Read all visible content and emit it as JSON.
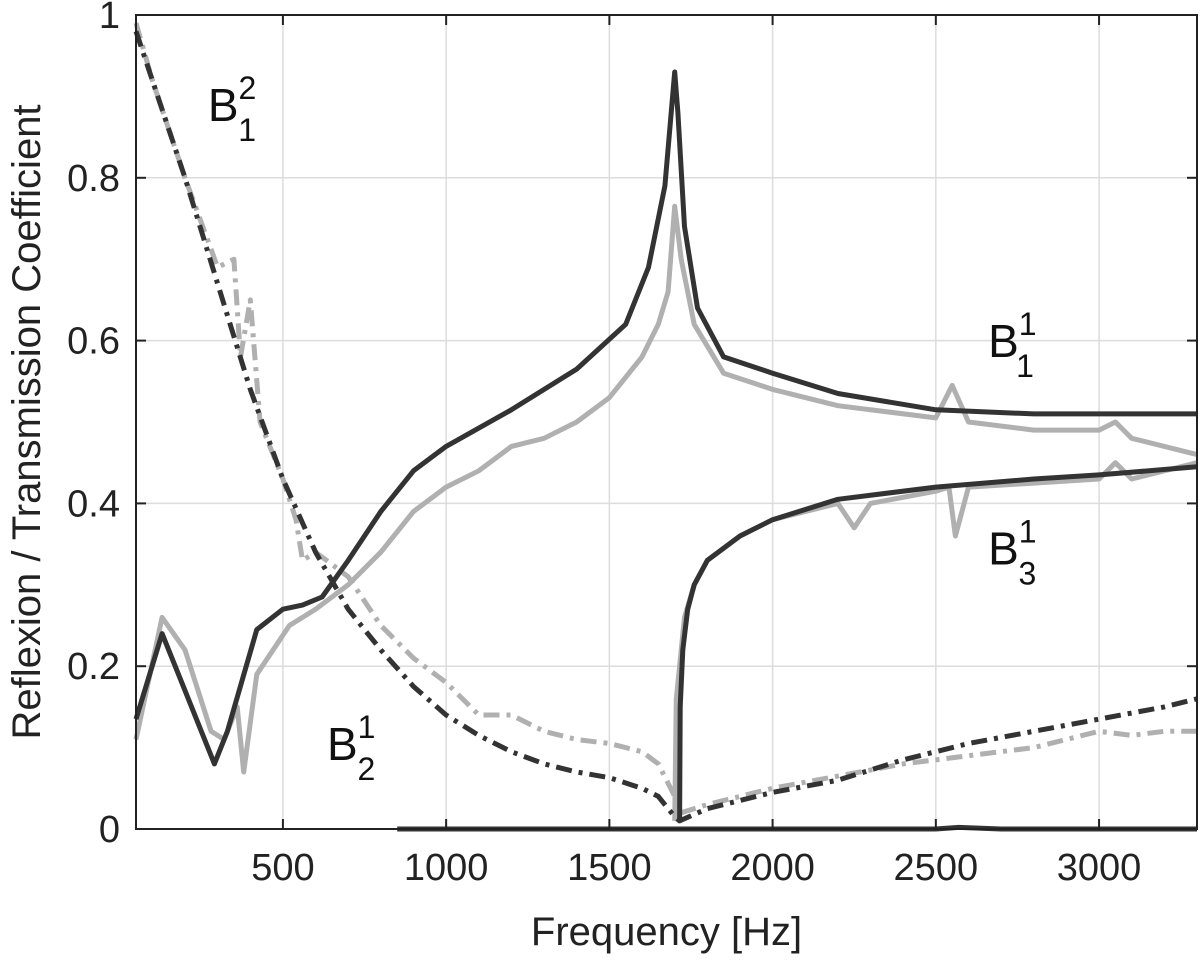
{
  "chart_data": {
    "type": "line",
    "xlabel": "Frequency [Hz]",
    "ylabel": "Reflexion / Transmission Coefficient",
    "xlim": [
      50,
      3300
    ],
    "ylim": [
      0,
      1
    ],
    "xticks": [
      500,
      1000,
      1500,
      2000,
      2500,
      3000
    ],
    "xtick_labels": [
      "500",
      "1000",
      "1500",
      "2000",
      "2500",
      "3000"
    ],
    "yticks": [
      0,
      0.2,
      0.4,
      0.6,
      0.8,
      1
    ],
    "ytick_labels": [
      "0",
      "0.2",
      "0.4",
      "0.6",
      "0.8",
      "1"
    ],
    "grid": true,
    "series": [
      {
        "style": "solid",
        "color": "#333333",
        "x": [
          50,
          130,
          200,
          290,
          330,
          420,
          500,
          560,
          620,
          700,
          800,
          900,
          1000,
          1200,
          1400,
          1550,
          1620,
          1670,
          1700,
          1710,
          1730,
          1770,
          1850,
          2000,
          2200,
          2500,
          2800,
          3000,
          3300
        ],
        "y": [
          0.135,
          0.24,
          0.17,
          0.08,
          0.12,
          0.245,
          0.27,
          0.275,
          0.285,
          0.33,
          0.39,
          0.44,
          0.47,
          0.515,
          0.565,
          0.62,
          0.69,
          0.79,
          0.93,
          0.88,
          0.74,
          0.64,
          0.58,
          0.56,
          0.535,
          0.515,
          0.51,
          0.51,
          0.51
        ]
      },
      {
        "style": "solid",
        "color": "#b0b0b0",
        "x": [
          50,
          130,
          200,
          280,
          320,
          360,
          380,
          420,
          520,
          600,
          700,
          800,
          900,
          1000,
          1100,
          1200,
          1300,
          1400,
          1500,
          1600,
          1650,
          1680,
          1700,
          1720,
          1760,
          1850,
          2000,
          2200,
          2500,
          2550,
          2600,
          2800,
          3000,
          3050,
          3100,
          3200,
          3300
        ],
        "y": [
          0.11,
          0.26,
          0.22,
          0.12,
          0.11,
          0.15,
          0.07,
          0.19,
          0.25,
          0.27,
          0.3,
          0.34,
          0.39,
          0.42,
          0.44,
          0.47,
          0.48,
          0.5,
          0.53,
          0.58,
          0.62,
          0.66,
          0.765,
          0.7,
          0.62,
          0.56,
          0.54,
          0.52,
          0.505,
          0.545,
          0.5,
          0.49,
          0.49,
          0.5,
          0.48,
          0.47,
          0.46
        ]
      },
      {
        "style": "dashdot",
        "color": "#333333",
        "x": [
          50,
          100,
          200,
          300,
          400,
          500,
          600,
          700,
          800,
          900,
          1000,
          1100,
          1200,
          1300,
          1400,
          1500,
          1600,
          1650,
          1700,
          1715,
          1800,
          2000,
          2200,
          2400,
          2600,
          2800,
          3000,
          3200,
          3300
        ],
        "y": [
          0.98,
          0.92,
          0.8,
          0.67,
          0.54,
          0.43,
          0.34,
          0.27,
          0.22,
          0.175,
          0.14,
          0.115,
          0.095,
          0.08,
          0.07,
          0.063,
          0.05,
          0.04,
          0.015,
          0.01,
          0.025,
          0.045,
          0.06,
          0.085,
          0.105,
          0.12,
          0.135,
          0.15,
          0.16
        ]
      },
      {
        "style": "dashdot",
        "color": "#b0b0b0",
        "x": [
          50,
          100,
          200,
          300,
          350,
          370,
          400,
          430,
          500,
          540,
          560,
          600,
          700,
          800,
          900,
          1000,
          1100,
          1200,
          1300,
          1400,
          1500,
          1600,
          1650,
          1700,
          1720,
          1800,
          2000,
          2200,
          2400,
          2600,
          2800,
          3000,
          3100,
          3200,
          3300
        ],
        "y": [
          0.99,
          0.92,
          0.8,
          0.69,
          0.7,
          0.58,
          0.65,
          0.5,
          0.43,
          0.38,
          0.33,
          0.34,
          0.31,
          0.25,
          0.21,
          0.18,
          0.14,
          0.14,
          0.12,
          0.11,
          0.105,
          0.095,
          0.08,
          0.04,
          0.02,
          0.03,
          0.05,
          0.065,
          0.08,
          0.09,
          0.1,
          0.12,
          0.115,
          0.12,
          0.12
        ]
      },
      {
        "style": "solid",
        "color": "#333333",
        "x": [
          850,
          1000,
          1500,
          1700,
          2000,
          2500,
          2570,
          2700,
          3000,
          3300
        ],
        "y": [
          0,
          0,
          0,
          0,
          0,
          0,
          0.002,
          0,
          0,
          0
        ]
      },
      {
        "style": "solid",
        "color": "#333333",
        "x": [
          1715,
          1717,
          1725,
          1740,
          1760,
          1800,
          1900,
          2000,
          2200,
          2500,
          2800,
          3000,
          3300
        ],
        "y": [
          0.01,
          0.15,
          0.22,
          0.27,
          0.3,
          0.33,
          0.36,
          0.38,
          0.405,
          0.42,
          0.43,
          0.435,
          0.445
        ]
      },
      {
        "style": "solid",
        "color": "#b0b0b0",
        "x": [
          1700,
          1705,
          1715,
          1730,
          1760,
          1800,
          1900,
          2000,
          2200,
          2250,
          2300,
          2500,
          2540,
          2560,
          2600,
          2800,
          3000,
          3050,
          3100,
          3300
        ],
        "y": [
          0.01,
          0.16,
          0.2,
          0.26,
          0.3,
          0.33,
          0.36,
          0.38,
          0.4,
          0.37,
          0.4,
          0.415,
          0.42,
          0.36,
          0.42,
          0.425,
          0.43,
          0.45,
          0.43,
          0.45
        ]
      }
    ],
    "annotations": [
      {
        "base": "B",
        "sup": "2",
        "sub": "1",
        "x": 270,
        "y": 0.87
      },
      {
        "base": "B",
        "sup": "1",
        "sub": "1",
        "x": 2660,
        "y": 0.58
      },
      {
        "base": "B",
        "sup": "1",
        "sub": "3",
        "x": 2660,
        "y": 0.325
      },
      {
        "base": "B",
        "sup": "1",
        "sub": "2",
        "x": 635,
        "y": 0.085
      }
    ]
  }
}
